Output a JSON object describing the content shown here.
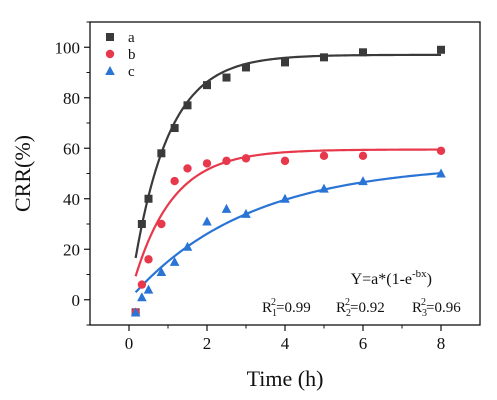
{
  "chart_data": {
    "type": "scatter",
    "xlabel": "Time (h)",
    "ylabel": "CRR(%)",
    "xlim": [
      -1,
      9
    ],
    "ylim": [
      -10,
      110
    ],
    "xticks": [
      0,
      2,
      4,
      6,
      8
    ],
    "yticks": [
      0,
      20,
      40,
      60,
      80,
      100
    ],
    "grid": false,
    "legend_position": "top-left",
    "series": [
      {
        "name": "a",
        "marker": "square",
        "color": "#3a3a3a",
        "x": [
          0.17,
          0.33,
          0.5,
          0.83,
          1.17,
          1.5,
          2,
          2.5,
          3,
          4,
          5,
          6,
          8
        ],
        "y": [
          -5,
          30,
          40,
          58,
          68,
          77,
          85,
          88,
          92,
          94,
          96,
          98,
          99
        ],
        "fit": {
          "a": 97,
          "b": 1.1
        }
      },
      {
        "name": "b",
        "marker": "circle",
        "color": "#e8384b",
        "x": [
          0.17,
          0.33,
          0.5,
          0.83,
          1.17,
          1.5,
          2,
          2.5,
          3,
          4,
          5,
          6,
          8
        ],
        "y": [
          -5,
          6,
          16,
          30,
          47,
          52,
          54,
          55,
          56,
          55,
          57,
          57,
          59
        ],
        "fit": {
          "a": 59.5,
          "b": 1.0
        }
      },
      {
        "name": "c",
        "marker": "triangle",
        "color": "#2a74d6",
        "x": [
          0.17,
          0.33,
          0.5,
          0.83,
          1.17,
          1.5,
          2,
          2.5,
          3,
          4,
          5,
          6,
          8
        ],
        "y": [
          -5,
          1,
          4,
          11,
          15,
          21,
          31,
          36,
          34,
          40,
          44,
          47,
          50
        ],
        "fit": {
          "a": 54,
          "b": 0.33
        }
      }
    ],
    "annotation": {
      "equation_prefix": "Y=a*(1-e",
      "equation_exponent": "-bx",
      "equation_suffix": ")",
      "r2": [
        {
          "base": "R",
          "sub": "1",
          "sup": "2",
          "value": "=0.99"
        },
        {
          "base": "R",
          "sub": "2",
          "sup": "2",
          "value": "=0.92"
        },
        {
          "base": "R",
          "sub": "3",
          "sup": "2",
          "value": "=0.96"
        }
      ]
    }
  }
}
